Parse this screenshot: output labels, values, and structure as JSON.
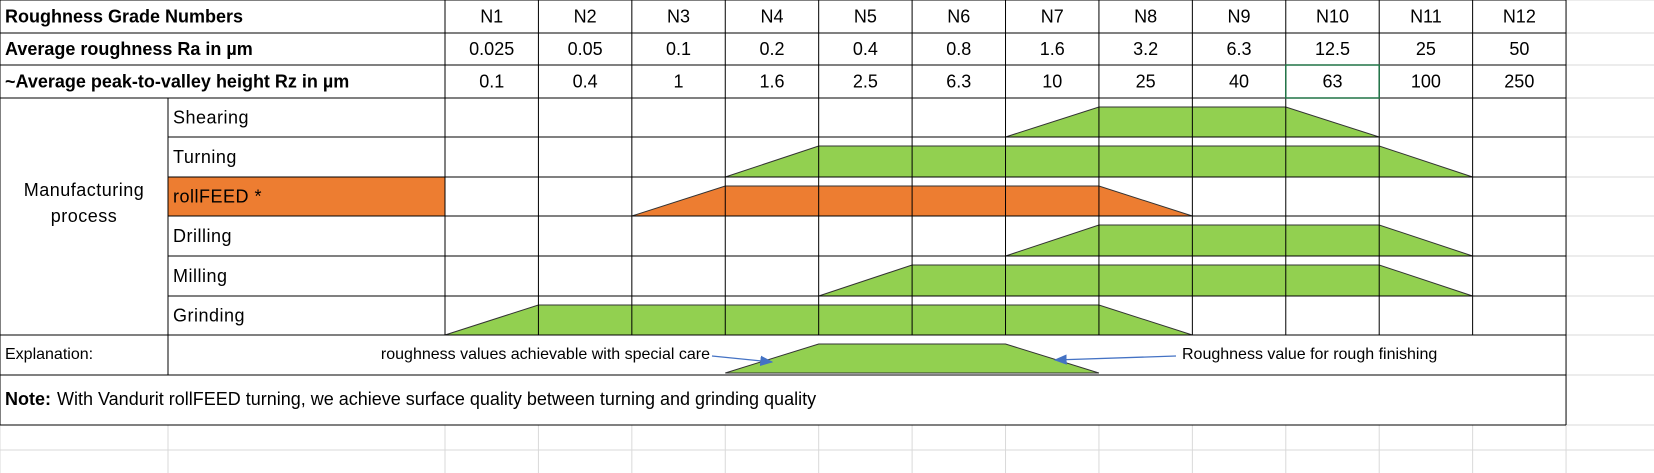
{
  "table": {
    "header_rows": [
      {
        "label": "Roughness Grade Numbers",
        "values": [
          "N1",
          "N2",
          "N3",
          "N4",
          "N5",
          "N6",
          "N7",
          "N8",
          "N9",
          "N10",
          "N11",
          "N12"
        ]
      },
      {
        "label": "Average roughness Ra in µm",
        "values": [
          0.025,
          0.05,
          0.1,
          0.2,
          0.4,
          0.8,
          1.6,
          3.2,
          6.3,
          12.5,
          25,
          50
        ]
      },
      {
        "label": "~Average peak-to-valley height Rz in µm",
        "values": [
          0.1,
          0.4,
          1,
          1.6,
          2.5,
          6.3,
          10,
          25,
          40,
          63,
          100,
          250
        ]
      }
    ],
    "group_label": "Manufacturing process",
    "processes": [
      "Shearing",
      "Turning",
      "rollFEED *",
      "Drilling",
      "Milling",
      "Grinding"
    ],
    "explanation": {
      "label": "Explanation:",
      "special_care": "roughness values achievable with special care",
      "rough_finishing": "Roughness value for rough finishing"
    },
    "note": {
      "label": "Note:",
      "text": "With Vandurit rollFEED turning, we achieve surface quality between turning and grinding quality"
    }
  }
}
